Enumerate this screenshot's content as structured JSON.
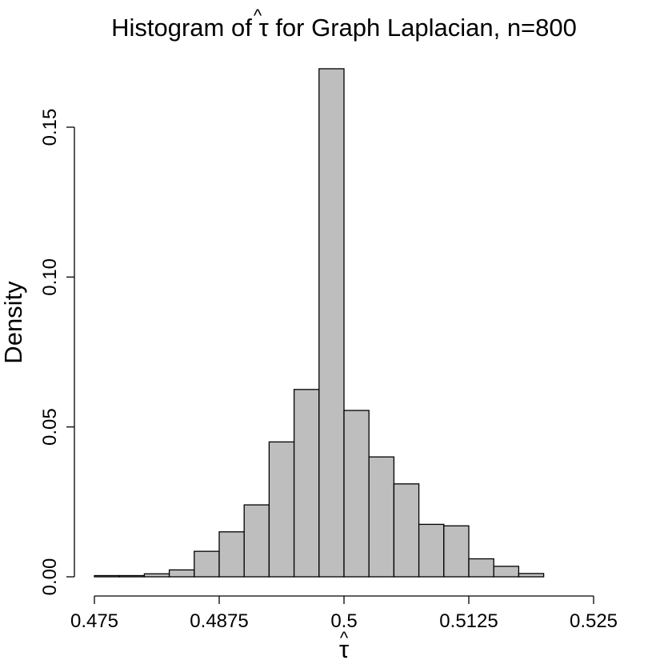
{
  "chart_data": {
    "type": "bar",
    "title_prefix": "Histogram of ",
    "title_symbol": "τ",
    "title_hat": "^",
    "title_suffix": " for Graph Laplacian, n=800",
    "xlabel_symbol": "τ",
    "xlabel_hat": "^",
    "ylabel": "Density",
    "bar_color": "#bebebe",
    "edge_color": "#000000",
    "xlim": [
      0.475,
      0.525
    ],
    "ylim": [
      0,
      0.15
    ],
    "bin_width": 0.0025,
    "bins": [
      {
        "x0": 0.475,
        "x1": 0.4775,
        "density": 0.0004
      },
      {
        "x0": 0.4775,
        "x1": 0.48,
        "density": 0.0004
      },
      {
        "x0": 0.48,
        "x1": 0.4825,
        "density": 0.001
      },
      {
        "x0": 0.4825,
        "x1": 0.485,
        "density": 0.0023
      },
      {
        "x0": 0.485,
        "x1": 0.4875,
        "density": 0.0085
      },
      {
        "x0": 0.4875,
        "x1": 0.49,
        "density": 0.015
      },
      {
        "x0": 0.49,
        "x1": 0.4925,
        "density": 0.024
      },
      {
        "x0": 0.4925,
        "x1": 0.495,
        "density": 0.045
      },
      {
        "x0": 0.495,
        "x1": 0.4975,
        "density": 0.0625
      },
      {
        "x0": 0.4975,
        "x1": 0.5,
        "density": 0.1695
      },
      {
        "x0": 0.5,
        "x1": 0.5025,
        "density": 0.0555
      },
      {
        "x0": 0.5025,
        "x1": 0.505,
        "density": 0.04
      },
      {
        "x0": 0.505,
        "x1": 0.5075,
        "density": 0.031
      },
      {
        "x0": 0.5075,
        "x1": 0.51,
        "density": 0.0175
      },
      {
        "x0": 0.51,
        "x1": 0.5125,
        "density": 0.017
      },
      {
        "x0": 0.5125,
        "x1": 0.515,
        "density": 0.006
      },
      {
        "x0": 0.515,
        "x1": 0.5175,
        "density": 0.0035
      },
      {
        "x0": 0.5175,
        "x1": 0.52,
        "density": 0.0011
      }
    ],
    "x_ticks": [
      {
        "value": 0.475,
        "label": "0.475"
      },
      {
        "value": 0.4875,
        "label": "0.4875"
      },
      {
        "value": 0.5,
        "label": "0.5"
      },
      {
        "value": 0.5125,
        "label": "0.5125"
      },
      {
        "value": 0.525,
        "label": "0.525"
      }
    ],
    "y_ticks": [
      {
        "value": 0,
        "label": "0.00"
      },
      {
        "value": 0.05,
        "label": "0.05"
      },
      {
        "value": 0.1,
        "label": "0.10"
      },
      {
        "value": 0.15,
        "label": "0.15"
      }
    ],
    "grid": false,
    "legend": "none"
  }
}
